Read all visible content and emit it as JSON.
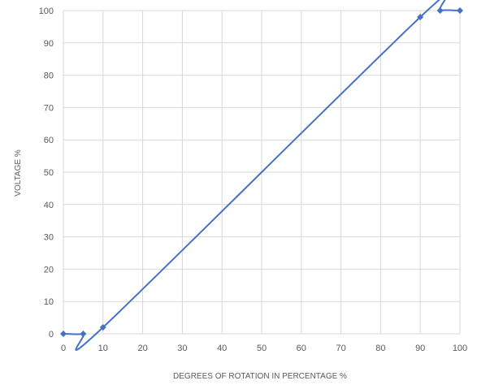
{
  "chart_data": {
    "type": "line",
    "title": "",
    "xlabel": "DEGREES OF ROTATION IN PERCENTAGE %",
    "ylabel": "VOLTAGE %",
    "xlim": [
      0,
      100
    ],
    "ylim": [
      0,
      100
    ],
    "x_ticks": [
      "0",
      "10",
      "20",
      "30",
      "40",
      "50",
      "60",
      "70",
      "80",
      "90",
      "100"
    ],
    "y_ticks": [
      "0",
      "10",
      "20",
      "30",
      "40",
      "50",
      "60",
      "70",
      "80",
      "90",
      "100"
    ],
    "grid": true,
    "legend": "none",
    "smooth": true,
    "series": [
      {
        "color": "#4472c4",
        "x": [
          0,
          5,
          10,
          90,
          95,
          100
        ],
        "y": [
          0,
          0,
          2,
          98,
          100,
          100
        ]
      }
    ]
  }
}
